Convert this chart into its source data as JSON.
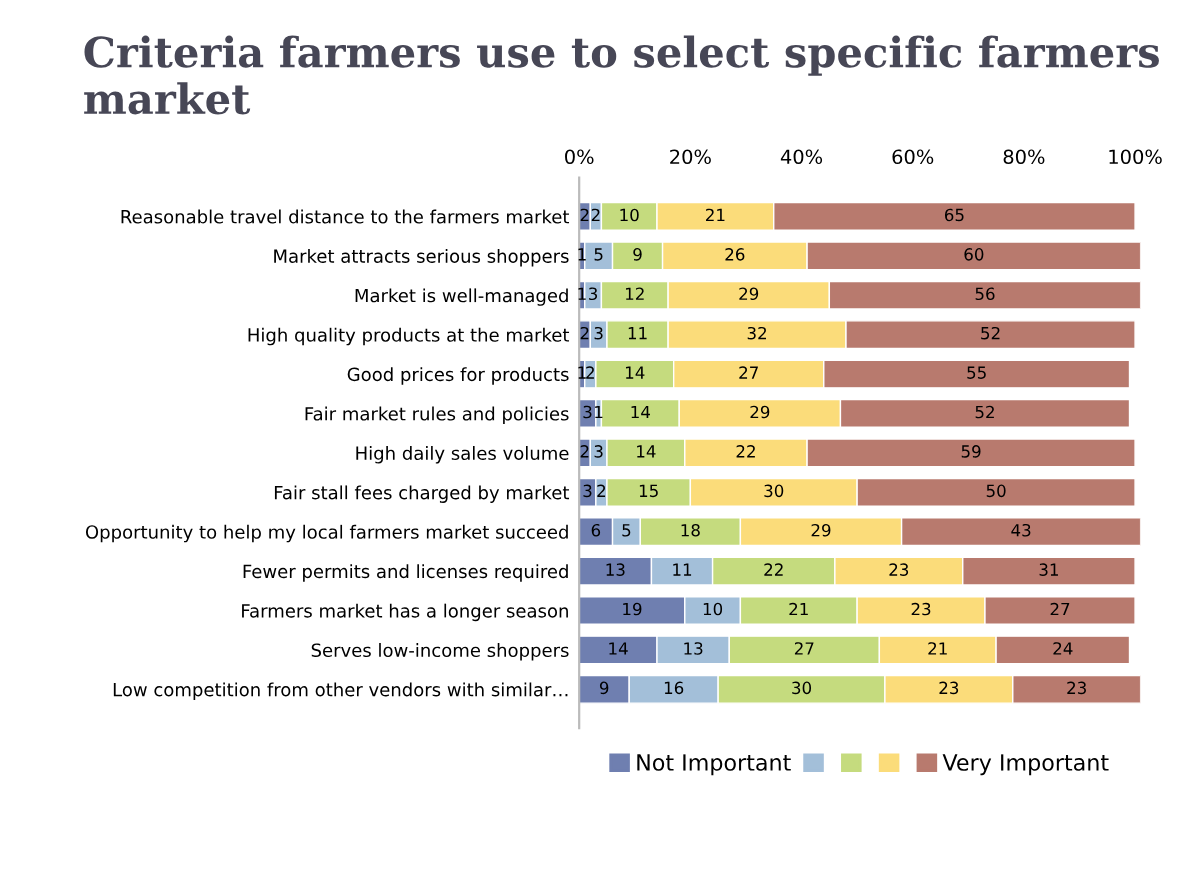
{
  "chart_data": {
    "type": "bar",
    "orientation": "horizontal",
    "stacked": true,
    "data_labels": true,
    "title": "Criteria farmers use to select specific farmers market",
    "categories": [
      "Reasonable travel distance to the farmers market",
      "Market attracts serious shoppers",
      "Market is well-managed",
      "High quality products at the market",
      "Good prices for products",
      "Fair market rules and policies",
      "High daily sales volume",
      "Fair stall fees charged by market",
      "Opportunity to help my local farmers market succeed",
      "Fewer permits and licenses required",
      "Farmers market has a longer season",
      "Serves low-income shoppers",
      "Low competition from other vendors with similar…"
    ],
    "series": [
      {
        "name": "Not Important",
        "color": "#6f7fb0",
        "values": [
          2,
          1,
          1,
          2,
          1,
          3,
          2,
          3,
          6,
          13,
          19,
          14,
          9
        ]
      },
      {
        "color": "#a3bfd9",
        "values": [
          2,
          5,
          3,
          3,
          2,
          1,
          3,
          2,
          5,
          11,
          10,
          13,
          16
        ]
      },
      {
        "color": "#c5db7e",
        "values": [
          10,
          9,
          12,
          11,
          14,
          14,
          14,
          15,
          18,
          22,
          21,
          27,
          30
        ]
      },
      {
        "color": "#fbdc7a",
        "values": [
          21,
          26,
          29,
          32,
          27,
          29,
          22,
          30,
          29,
          23,
          23,
          21,
          23
        ]
      },
      {
        "name": "Very Important",
        "color": "#b87a6e",
        "values": [
          65,
          60,
          56,
          52,
          55,
          52,
          59,
          50,
          43,
          31,
          27,
          24,
          23
        ]
      }
    ],
    "xlim": [
      0,
      101
    ],
    "xticks": [
      {
        "value": 0,
        "label": "0%"
      },
      {
        "value": 20,
        "label": "20%"
      },
      {
        "value": 40,
        "label": "40%"
      },
      {
        "value": 60,
        "label": "60%"
      },
      {
        "value": 80,
        "label": "80%"
      },
      {
        "value": 100,
        "label": "100%"
      }
    ],
    "grid": false,
    "legend": "bottom"
  }
}
